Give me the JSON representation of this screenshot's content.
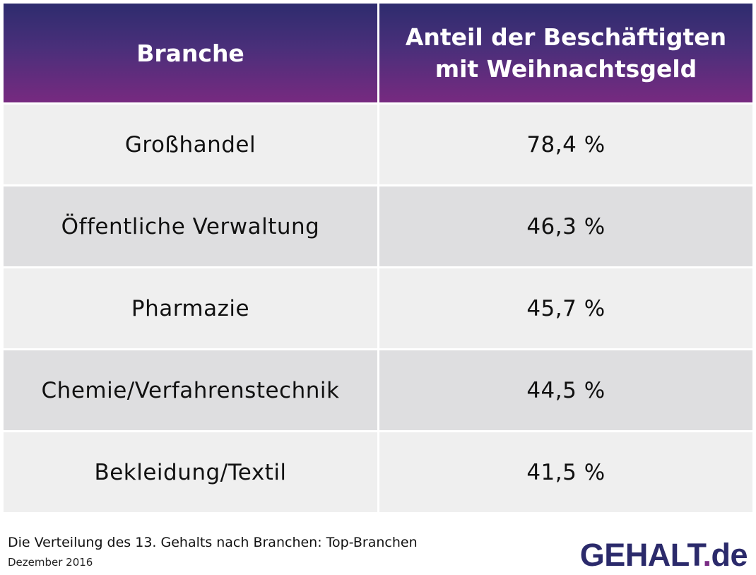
{
  "chart_data": {
    "type": "table",
    "columns": [
      "Branche",
      "Anteil der Beschäftigten mit Weihnachtsgeld"
    ],
    "rows": [
      {
        "branche": "Großhandel",
        "anteil": "78,4 %",
        "value": 78.4
      },
      {
        "branche": "Öffentliche Verwaltung",
        "anteil": "46,3 %",
        "value": 46.3
      },
      {
        "branche": "Pharmazie",
        "anteil": "45,7 %",
        "value": 45.7
      },
      {
        "branche": "Chemie/Verfahrenstechnik",
        "anteil": "44,5 %",
        "value": 44.5
      },
      {
        "branche": "Bekleidung/Textil",
        "anteil": "41,5 %",
        "value": 41.5
      }
    ],
    "title": "Die Verteilung des 13. Gehalts nach Branchen: Top-Branchen",
    "subtitle": "Dezember 2016"
  },
  "header": {
    "col1": "Branche",
    "col2_line1": "Anteil der Beschäftigten",
    "col2_line2": "mit Weihnachtsgeld"
  },
  "footer": {
    "title": "Die Verteilung des 13. Gehalts nach Branchen: Top-Branchen",
    "date": "Dezember 2016"
  },
  "logo": {
    "part1": "GEHALT",
    "dot": ".",
    "part2": "de"
  },
  "colors": {
    "header_top": "#2e2c6e",
    "header_bottom": "#772a80",
    "row_light": "#efefef",
    "row_dark": "#dedee0",
    "logo_blue": "#2b2a6b",
    "logo_purple": "#7b2d85"
  }
}
